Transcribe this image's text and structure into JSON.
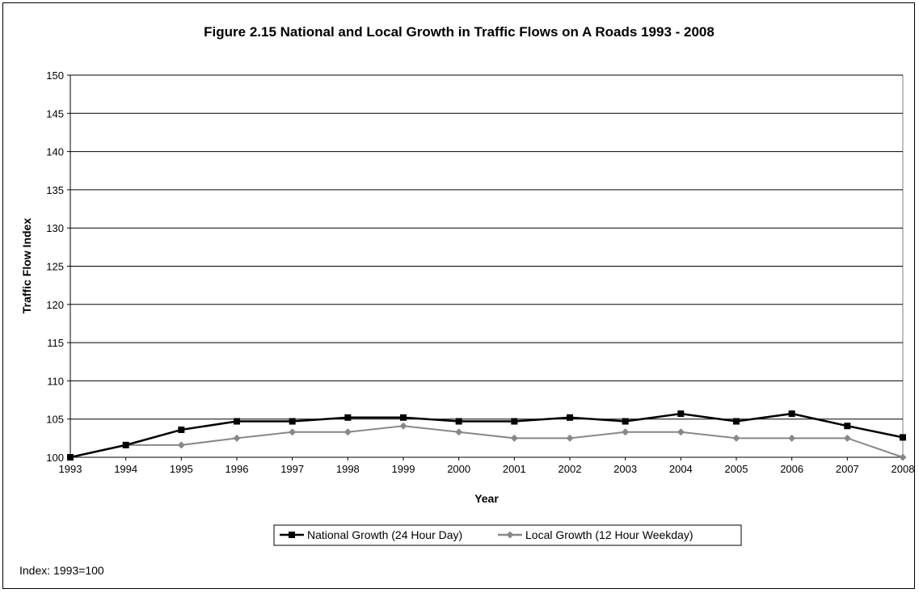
{
  "chart_data": {
    "type": "line",
    "title": "Figure 2.15 National and Local Growth in Traffic Flows on A Roads 1993 - 2008",
    "xlabel": "Year",
    "ylabel": "Traffic Flow Index",
    "ylim": [
      100,
      150
    ],
    "yticks": [
      "100",
      "105",
      "110",
      "115",
      "120",
      "125",
      "130",
      "135",
      "140",
      "145",
      "150"
    ],
    "categories": [
      "1993",
      "1994",
      "1995",
      "1996",
      "1997",
      "1998",
      "1999",
      "2000",
      "2001",
      "2002",
      "2003",
      "2004",
      "2005",
      "2006",
      "2007",
      "2008"
    ],
    "grid": "horizontal",
    "legend_position": "bottom",
    "series": [
      {
        "name": "National Growth (24 Hour Day)",
        "color": "#000000",
        "marker": "square",
        "values": [
          100,
          101.6,
          103.6,
          104.7,
          104.7,
          105.2,
          105.2,
          104.7,
          104.7,
          105.2,
          104.7,
          105.7,
          104.7,
          105.7,
          104.1,
          102.6
        ]
      },
      {
        "name": "Local Growth (12 Hour Weekday)",
        "color": "#888888",
        "marker": "diamond",
        "values": [
          100,
          101.6,
          101.6,
          102.5,
          103.3,
          103.3,
          104.1,
          103.3,
          102.5,
          102.5,
          103.3,
          103.3,
          102.5,
          102.5,
          102.5,
          100
        ]
      }
    ],
    "footnote": "Index: 1993=100"
  }
}
